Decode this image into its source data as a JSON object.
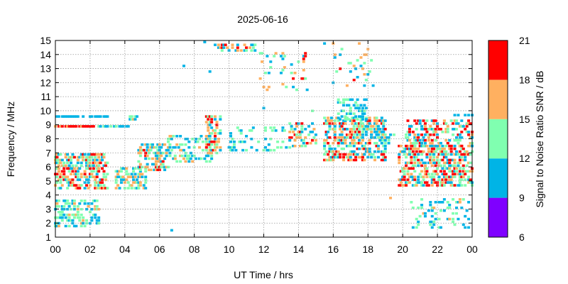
{
  "chart_data": {
    "type": "scatter",
    "title": "2025-06-16",
    "xlabel": "UT Time / hrs",
    "ylabel": "Frequency / MHz",
    "xlim": [
      0,
      24
    ],
    "ylim": [
      1,
      15
    ],
    "x_tick_labels": [
      "00",
      "02",
      "04",
      "06",
      "08",
      "10",
      "12",
      "14",
      "16",
      "18",
      "20",
      "22",
      "00"
    ],
    "y_ticks": [
      1,
      2,
      3,
      4,
      5,
      6,
      7,
      8,
      9,
      10,
      11,
      12,
      13,
      14,
      15
    ],
    "grid": true,
    "colorbar": {
      "label": "Signal to Noise Ratio SNR / dB",
      "ticks": [
        6,
        9,
        12,
        15,
        18,
        21
      ],
      "bands": [
        {
          "min": 6,
          "max": 9,
          "color": "#7f00ff"
        },
        {
          "min": 9,
          "max": 12,
          "color": "#00b4e6"
        },
        {
          "min": 12,
          "max": 15,
          "color": "#80ffb0"
        },
        {
          "min": 15,
          "max": 18,
          "color": "#ffb060"
        },
        {
          "min": 18,
          "max": 21,
          "color": "#ff0000"
        }
      ]
    },
    "clusters": [
      {
        "x": [
          0.0,
          3.0
        ],
        "y": [
          4.5,
          7.0
        ],
        "snr": [
          10,
          20
        ],
        "density": 0.55
      },
      {
        "x": [
          0.0,
          2.2
        ],
        "y": [
          8.9,
          9.0
        ],
        "snr": [
          17,
          20
        ],
        "density": 0.9
      },
      {
        "x": [
          0.0,
          3.0
        ],
        "y": [
          9.6,
          9.7
        ],
        "snr": [
          10,
          12
        ],
        "density": 0.7
      },
      {
        "x": [
          0.0,
          2.5
        ],
        "y": [
          1.8,
          3.6
        ],
        "snr": [
          9,
          16
        ],
        "density": 0.4
      },
      {
        "x": [
          2.5,
          4.2
        ],
        "y": [
          8.9,
          9.0
        ],
        "snr": [
          10,
          13
        ],
        "density": 0.7
      },
      {
        "x": [
          3.5,
          5.2
        ],
        "y": [
          4.5,
          6.0
        ],
        "snr": [
          9,
          17
        ],
        "density": 0.45
      },
      {
        "x": [
          4.3,
          4.7
        ],
        "y": [
          9.4,
          9.6
        ],
        "snr": [
          10,
          20
        ],
        "density": 0.7
      },
      {
        "x": [
          4.8,
          6.5
        ],
        "y": [
          5.8,
          7.6
        ],
        "snr": [
          9,
          19
        ],
        "density": 0.45
      },
      {
        "x": [
          6.5,
          9.0
        ],
        "y": [
          6.4,
          8.3
        ],
        "snr": [
          9,
          16
        ],
        "density": 0.3
      },
      {
        "x": [
          8.7,
          9.5
        ],
        "y": [
          7.0,
          9.7
        ],
        "snr": [
          9,
          21
        ],
        "density": 0.5
      },
      {
        "x": [
          9.2,
          11.5
        ],
        "y": [
          14.3,
          14.8
        ],
        "snr": [
          9,
          20
        ],
        "density": 0.4
      },
      {
        "x": [
          10.0,
          13.5
        ],
        "y": [
          7.2,
          8.9
        ],
        "snr": [
          9,
          14
        ],
        "density": 0.18
      },
      {
        "x": [
          11.8,
          14.5
        ],
        "y": [
          11.5,
          14.3
        ],
        "snr": [
          9,
          20
        ],
        "density": 0.08
      },
      {
        "x": [
          13.5,
          15.0
        ],
        "y": [
          7.5,
          9.1
        ],
        "snr": [
          9,
          19
        ],
        "density": 0.3
      },
      {
        "x": [
          15.5,
          19.0
        ],
        "y": [
          6.5,
          9.5
        ],
        "snr": [
          9,
          20
        ],
        "density": 0.5
      },
      {
        "x": [
          16.3,
          18.0
        ],
        "y": [
          9.4,
          10.8
        ],
        "snr": [
          9,
          14
        ],
        "density": 0.35
      },
      {
        "x": [
          16.0,
          18.3
        ],
        "y": [
          11.8,
          14.9
        ],
        "snr": [
          9,
          19
        ],
        "density": 0.07
      },
      {
        "x": [
          18.2,
          19.6
        ],
        "y": [
          7.7,
          8.7
        ],
        "snr": [
          9,
          14
        ],
        "density": 0.3
      },
      {
        "x": [
          19.8,
          24.0
        ],
        "y": [
          4.7,
          7.6
        ],
        "snr": [
          9,
          21
        ],
        "density": 0.5
      },
      {
        "x": [
          20.2,
          24.0
        ],
        "y": [
          7.5,
          9.3
        ],
        "snr": [
          9,
          20
        ],
        "density": 0.32
      },
      {
        "x": [
          20.3,
          23.8
        ],
        "y": [
          1.7,
          3.8
        ],
        "snr": [
          9,
          16
        ],
        "density": 0.15
      },
      {
        "x": [
          23.0,
          24.0
        ],
        "y": [
          9.7,
          9.8
        ],
        "snr": [
          9,
          12
        ],
        "density": 0.5
      }
    ],
    "points": [
      {
        "x": 6.7,
        "y": 1.5,
        "snr": 10
      },
      {
        "x": 7.4,
        "y": 13.2,
        "snr": 10
      },
      {
        "x": 8.9,
        "y": 12.8,
        "snr": 11
      },
      {
        "x": 8.6,
        "y": 14.9,
        "snr": 10
      },
      {
        "x": 15.5,
        "y": 14.8,
        "snr": 10
      },
      {
        "x": 19.3,
        "y": 3.8,
        "snr": 16
      },
      {
        "x": 12.0,
        "y": 10.2,
        "snr": 10
      },
      {
        "x": 14.8,
        "y": 10.0,
        "snr": 12
      }
    ]
  }
}
